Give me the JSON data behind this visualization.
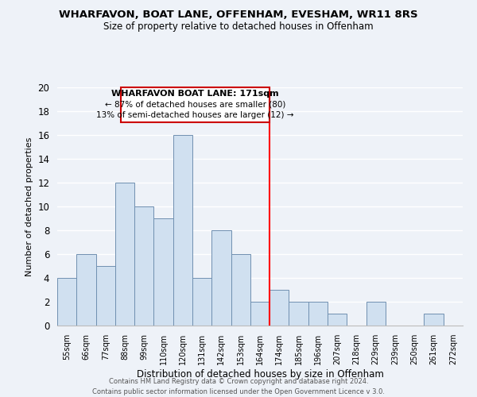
{
  "title": "WHARFAVON, BOAT LANE, OFFENHAM, EVESHAM, WR11 8RS",
  "subtitle": "Size of property relative to detached houses in Offenham",
  "xlabel": "Distribution of detached houses by size in Offenham",
  "ylabel": "Number of detached properties",
  "bin_labels": [
    "55sqm",
    "66sqm",
    "77sqm",
    "88sqm",
    "99sqm",
    "110sqm",
    "120sqm",
    "131sqm",
    "142sqm",
    "153sqm",
    "164sqm",
    "174sqm",
    "185sqm",
    "196sqm",
    "207sqm",
    "218sqm",
    "229sqm",
    "239sqm",
    "250sqm",
    "261sqm",
    "272sqm"
  ],
  "bar_values": [
    4,
    6,
    5,
    12,
    10,
    9,
    16,
    4,
    8,
    6,
    2,
    3,
    2,
    2,
    1,
    0,
    2,
    0,
    0,
    1,
    0
  ],
  "bar_color": "#d0e0f0",
  "bar_edge_color": "#7090b0",
  "vline_x_index": 11,
  "vline_color": "red",
  "ylim": [
    0,
    20
  ],
  "yticks": [
    0,
    2,
    4,
    6,
    8,
    10,
    12,
    14,
    16,
    18,
    20
  ],
  "annotation_title": "WHARFAVON BOAT LANE: 171sqm",
  "annotation_line1": "← 87% of detached houses are smaller (80)",
  "annotation_line2": "13% of semi-detached houses are larger (12) →",
  "annotation_box_color": "white",
  "annotation_box_edge": "#cc0000",
  "footer_line1": "Contains HM Land Registry data © Crown copyright and database right 2024.",
  "footer_line2": "Contains public sector information licensed under the Open Government Licence v 3.0.",
  "background_color": "#eef2f8",
  "grid_color": "white",
  "title_fontsize": 9.5,
  "subtitle_fontsize": 8.5
}
